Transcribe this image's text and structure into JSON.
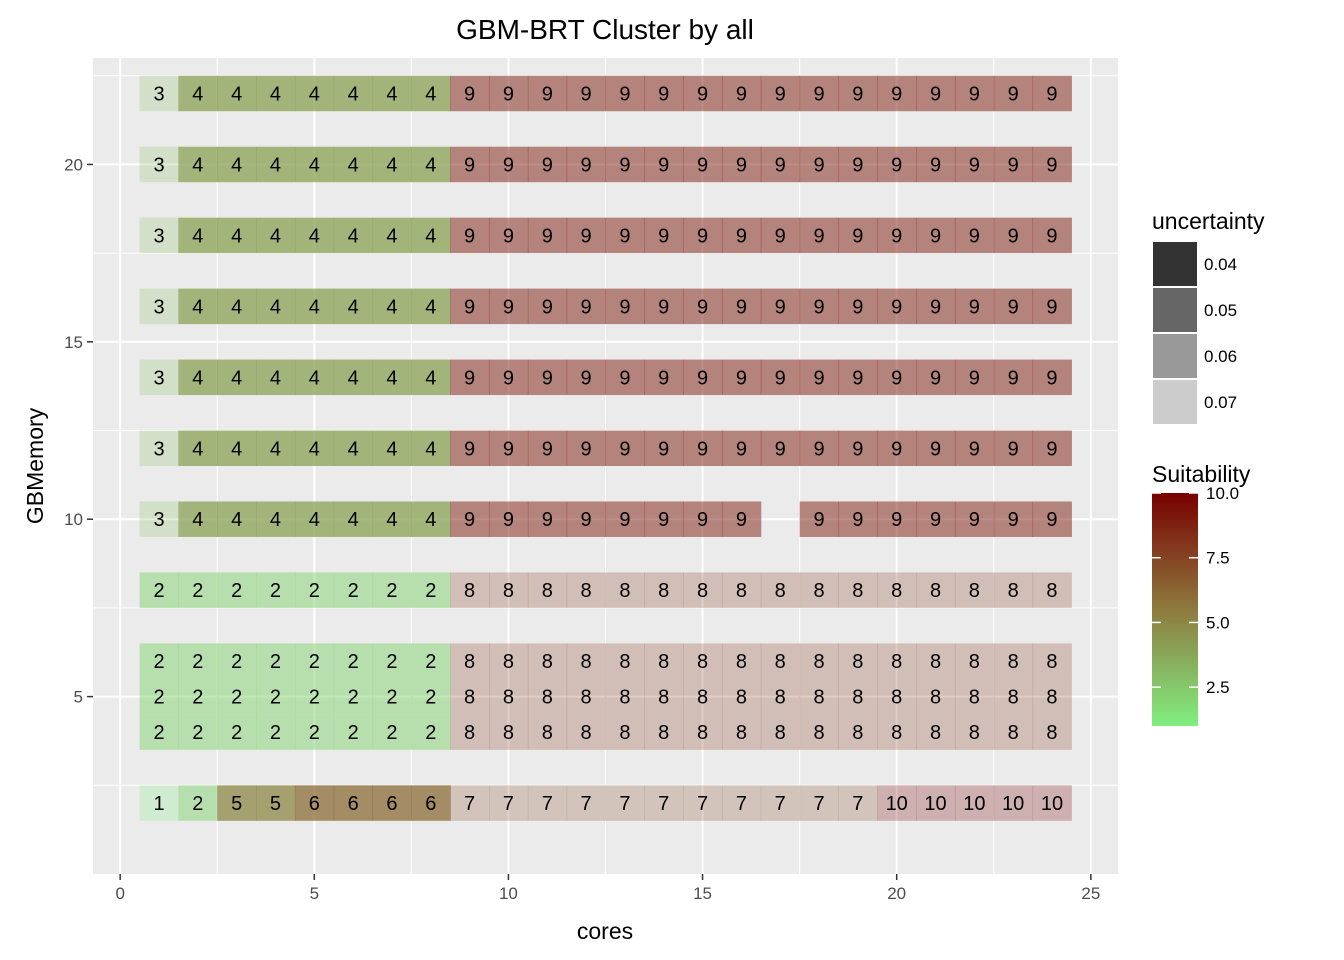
{
  "chart_data": {
    "type": "heatmap",
    "title": "GBM-BRT  Cluster by  all",
    "xlabel": "cores",
    "ylabel": "GBMemory",
    "xlim": [
      -0.7,
      25.7
    ],
    "ylim": [
      0.0,
      23.0
    ],
    "x_ticks": [
      0,
      5,
      10,
      15,
      20,
      25
    ],
    "y_ticks": [
      5,
      10,
      15,
      20
    ],
    "y_levels": [
      2,
      4,
      5,
      6,
      8,
      10,
      12,
      14,
      16,
      18,
      20,
      22
    ],
    "grid": true,
    "rows": [
      {
        "y": 22,
        "clusters": [
          3,
          4,
          4,
          4,
          4,
          4,
          4,
          4,
          9,
          9,
          9,
          9,
          9,
          9,
          9,
          9,
          9,
          9,
          9,
          9,
          9,
          9,
          9,
          9
        ]
      },
      {
        "y": 20,
        "clusters": [
          3,
          4,
          4,
          4,
          4,
          4,
          4,
          4,
          9,
          9,
          9,
          9,
          9,
          9,
          9,
          9,
          9,
          9,
          9,
          9,
          9,
          9,
          9,
          9
        ]
      },
      {
        "y": 18,
        "clusters": [
          3,
          4,
          4,
          4,
          4,
          4,
          4,
          4,
          9,
          9,
          9,
          9,
          9,
          9,
          9,
          9,
          9,
          9,
          9,
          9,
          9,
          9,
          9,
          9
        ]
      },
      {
        "y": 16,
        "clusters": [
          3,
          4,
          4,
          4,
          4,
          4,
          4,
          4,
          9,
          9,
          9,
          9,
          9,
          9,
          9,
          9,
          9,
          9,
          9,
          9,
          9,
          9,
          9,
          9
        ]
      },
      {
        "y": 14,
        "clusters": [
          3,
          4,
          4,
          4,
          4,
          4,
          4,
          4,
          9,
          9,
          9,
          9,
          9,
          9,
          9,
          9,
          9,
          9,
          9,
          9,
          9,
          9,
          9,
          9
        ]
      },
      {
        "y": 12,
        "clusters": [
          3,
          4,
          4,
          4,
          4,
          4,
          4,
          4,
          9,
          9,
          9,
          9,
          9,
          9,
          9,
          9,
          9,
          9,
          9,
          9,
          9,
          9,
          9,
          9
        ]
      },
      {
        "y": 10,
        "clusters": [
          3,
          4,
          4,
          4,
          4,
          4,
          4,
          4,
          9,
          9,
          9,
          9,
          9,
          9,
          9,
          9,
          null,
          9,
          9,
          9,
          9,
          9,
          9,
          9
        ]
      },
      {
        "y": 8,
        "clusters": [
          2,
          2,
          2,
          2,
          2,
          2,
          2,
          2,
          8,
          8,
          8,
          8,
          8,
          8,
          8,
          8,
          8,
          8,
          8,
          8,
          8,
          8,
          8,
          8
        ]
      },
      {
        "y": 6,
        "clusters": [
          2,
          2,
          2,
          2,
          2,
          2,
          2,
          2,
          8,
          8,
          8,
          8,
          8,
          8,
          8,
          8,
          8,
          8,
          8,
          8,
          8,
          8,
          8,
          8
        ]
      },
      {
        "y": 5,
        "clusters": [
          2,
          2,
          2,
          2,
          2,
          2,
          2,
          2,
          8,
          8,
          8,
          8,
          8,
          8,
          8,
          8,
          8,
          8,
          8,
          8,
          8,
          8,
          8,
          8
        ]
      },
      {
        "y": 4,
        "clusters": [
          2,
          2,
          2,
          2,
          2,
          2,
          2,
          2,
          8,
          8,
          8,
          8,
          8,
          8,
          8,
          8,
          8,
          8,
          8,
          8,
          8,
          8,
          8,
          8
        ]
      },
      {
        "y": 2,
        "clusters": [
          1,
          2,
          5,
          5,
          6,
          6,
          6,
          6,
          7,
          7,
          7,
          7,
          7,
          7,
          7,
          7,
          7,
          7,
          7,
          10,
          10,
          10,
          10,
          10
        ]
      }
    ],
    "uncertainty_by_cluster": {
      "1": 0.07,
      "2": 0.06,
      "3": 0.07,
      "4": 0.05,
      "5": 0.05,
      "6": 0.05,
      "7": 0.07,
      "8": 0.07,
      "9": 0.06,
      "10": 0.07
    },
    "legend_uncertainty": {
      "title": "uncertainty",
      "entries": [
        {
          "label": "0.04",
          "alpha": 1.0
        },
        {
          "label": "0.05",
          "alpha": 0.75
        },
        {
          "label": "0.06",
          "alpha": 0.5
        },
        {
          "label": "0.07",
          "alpha": 0.25
        }
      ],
      "base_color": "#333333"
    },
    "legend_suitability": {
      "title": "Suitability",
      "range": [
        1,
        10
      ],
      "ticks": [
        "10.0",
        "7.5",
        "5.0",
        "2.5"
      ],
      "tick_values": [
        10,
        7.5,
        5,
        2.5
      ],
      "color_low": "#80ee80",
      "color_mid": "#8e7a3e",
      "color_high": "#780000"
    },
    "colors": {
      "panel": "#ebebeb",
      "grid_major": "#ffffff"
    }
  }
}
